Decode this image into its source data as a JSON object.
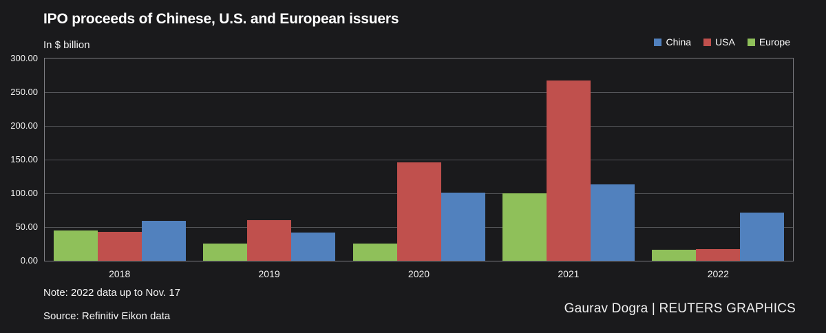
{
  "header": {
    "title": "IPO proceeds of Chinese, U.S. and European issuers",
    "subtitle": "In $ billion"
  },
  "footer": {
    "note": "Note: 2022 data up to Nov. 17",
    "source": "Source: Refinitiv Eikon data",
    "credit": "Gaurav Dogra | REUTERS GRAPHICS"
  },
  "colors": {
    "background": "#1a1a1c",
    "text": "#ffffff",
    "gridline": "#55565a",
    "plot_border": "#7e7e83",
    "china": "#5181be",
    "usa": "#c0504d",
    "europe": "#8fc05a"
  },
  "chart_data": {
    "type": "bar",
    "title": "IPO proceeds of Chinese, U.S. and European issuers",
    "subtitle": "In $ billion",
    "categories": [
      "2018",
      "2019",
      "2020",
      "2021",
      "2022"
    ],
    "series": [
      {
        "name": "China",
        "color": "#5181be",
        "values": [
          59,
          42,
          101,
          113,
          71
        ]
      },
      {
        "name": "USA",
        "color": "#c0504d",
        "values": [
          43,
          60,
          146,
          267,
          17
        ]
      },
      {
        "name": "Europe",
        "color": "#8fc05a",
        "values": [
          45,
          26,
          25,
          100,
          16
        ]
      }
    ],
    "bar_order": [
      "Europe",
      "USA",
      "China"
    ],
    "ylim": [
      0,
      300
    ],
    "yticks": [
      0,
      50,
      100,
      150,
      200,
      250,
      300
    ],
    "ytick_labels": [
      "0.00",
      "50.00",
      "100.00",
      "150.00",
      "200.00",
      "250.00",
      "300.00"
    ],
    "legend_position": "top-right",
    "grid": true
  }
}
